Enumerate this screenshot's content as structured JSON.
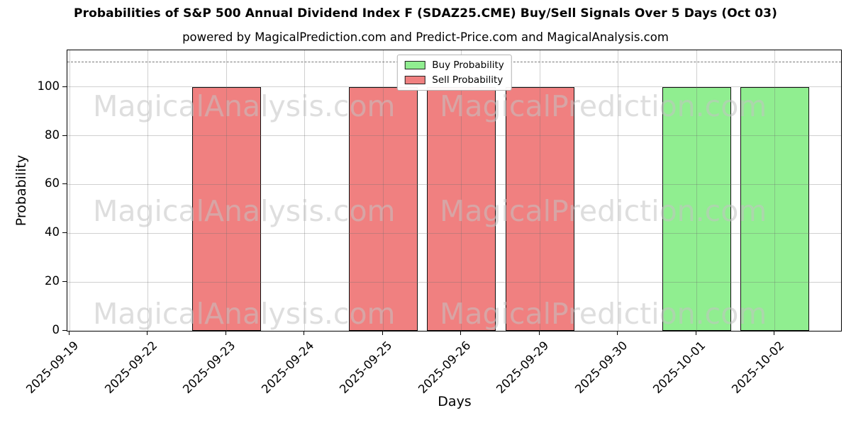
{
  "chart_data": {
    "type": "bar",
    "title": "Probabilities of S&P 500 Annual Dividend Index F (SDAZ25.CME) Buy/Sell Signals Over 5 Days (Oct 03)",
    "subtitle": "powered by MagicalPrediction.com and Predict-Price.com and MagicalAnalysis.com",
    "xlabel": "Days",
    "ylabel": "Probability",
    "categories": [
      "2025-09-19",
      "2025-09-22",
      "2025-09-23",
      "2025-09-24",
      "2025-09-25",
      "2025-09-26",
      "2025-09-29",
      "2025-09-30",
      "2025-10-01",
      "2025-10-02"
    ],
    "series": [
      {
        "name": "Buy Probability",
        "color": "#90ee90",
        "values": [
          0,
          0,
          0,
          0,
          0,
          0,
          0,
          0,
          100,
          100
        ]
      },
      {
        "name": "Sell Probability",
        "color": "#f08080",
        "values": [
          0,
          0,
          100,
          0,
          100,
          100,
          100,
          0,
          0,
          0
        ]
      }
    ],
    "ylim": [
      0,
      115
    ],
    "yticks": [
      0,
      20,
      40,
      60,
      80,
      100
    ],
    "grid": true,
    "legend_position": "upper center",
    "threshold_line": {
      "value": 110,
      "style": "dashed",
      "color": "#777777"
    },
    "watermarks": {
      "texts": [
        "MagicalAnalysis.com",
        "MagicalPrediction.com"
      ],
      "rows": 3,
      "color": "#c3c3c3"
    }
  }
}
